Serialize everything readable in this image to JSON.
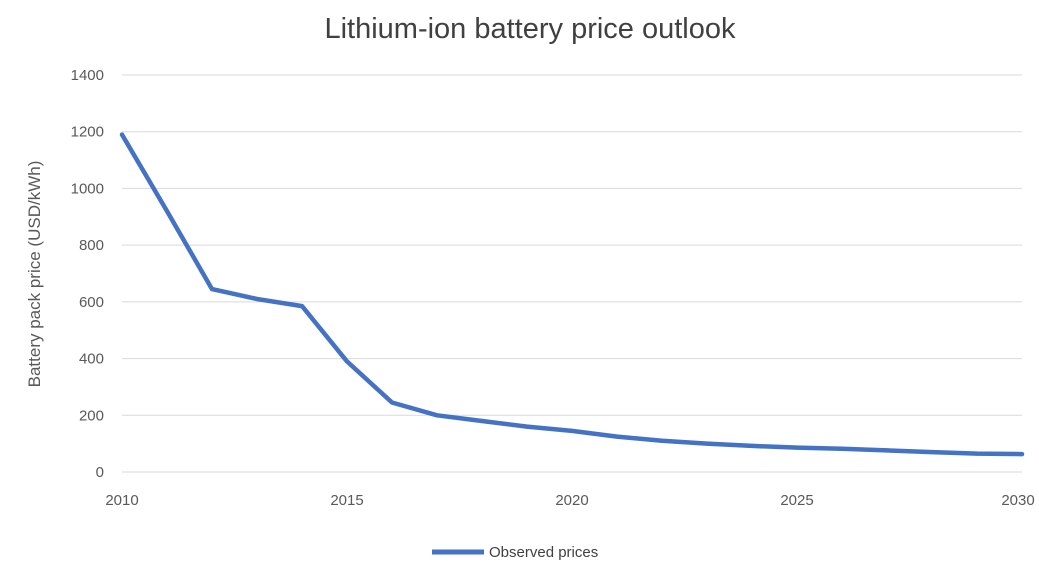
{
  "chart_data": {
    "type": "line",
    "title": "Lithium-ion battery price outlook",
    "xlabel": "",
    "ylabel": "Battery pack price (USD/kWh)",
    "xlim": [
      2010,
      2030
    ],
    "ylim": [
      0,
      1400
    ],
    "x_ticks": [
      "2010",
      "2015",
      "2020",
      "2025",
      "2030"
    ],
    "y_ticks": [
      "0",
      "200",
      "400",
      "600",
      "800",
      "1000",
      "1200",
      "1400"
    ],
    "grid": true,
    "legend": "bottom",
    "series": [
      {
        "name": "Observed prices",
        "color": "#4472C4",
        "x": [
          2010,
          2011,
          2012,
          2013,
          2014,
          2015,
          2016,
          2017,
          2018,
          2019,
          2020,
          2021,
          2022,
          2023,
          2024,
          2025,
          2026,
          2027,
          2028,
          2029,
          2030
        ],
        "y": [
          1190,
          920,
          645,
          610,
          585,
          390,
          245,
          200,
          180,
          160,
          145,
          125,
          110,
          100,
          92,
          86,
          82,
          76,
          70,
          65,
          63
        ]
      }
    ]
  },
  "colors": {
    "gridline": "#D9D9D9",
    "text": "#595959",
    "title": "#404040"
  }
}
